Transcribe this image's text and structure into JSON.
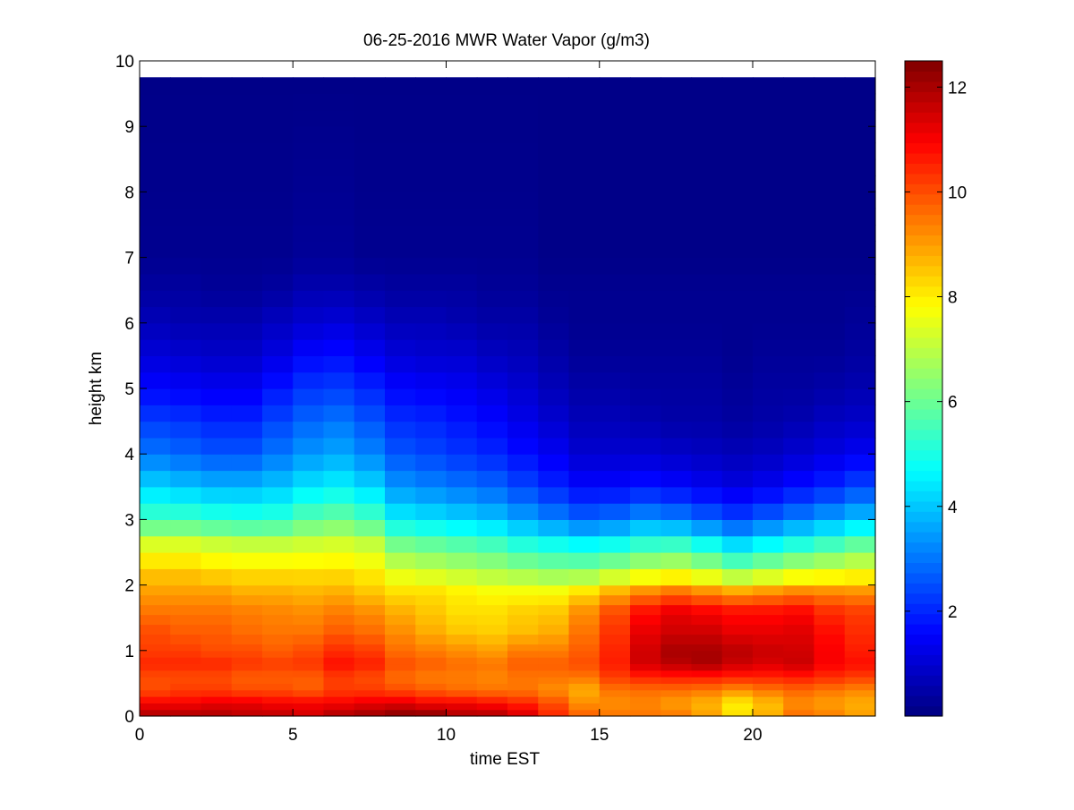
{
  "chart_data": {
    "type": "heatmap",
    "title": "06-25-2016 MWR Water Vapor (g/m3)",
    "xlabel": "time EST",
    "ylabel": "height km",
    "xlim": [
      0,
      24
    ],
    "ylim": [
      0,
      10
    ],
    "x_ticks": [
      "0",
      "5",
      "10",
      "15",
      "20"
    ],
    "y_ticks": [
      "0",
      "1",
      "2",
      "3",
      "4",
      "5",
      "6",
      "7",
      "8",
      "9",
      "10"
    ],
    "colorbar": {
      "colormap": "jet",
      "range": [
        0,
        12.5
      ],
      "ticks": [
        "2",
        "4",
        "6",
        "8",
        "10",
        "12"
      ]
    },
    "grid": false,
    "x_hours": [
      0,
      1,
      2,
      3,
      4,
      5,
      6,
      7,
      8,
      9,
      10,
      11,
      12,
      13,
      14,
      15,
      16,
      17,
      18,
      19,
      20,
      21,
      22,
      23
    ],
    "heights_km": [
      0,
      0.1,
      0.2,
      0.3,
      0.4,
      0.5,
      0.6,
      0.7,
      0.8,
      0.9,
      1.0,
      1.1,
      1.25,
      1.4,
      1.55,
      1.7,
      1.85,
      2.0,
      2.25,
      2.5,
      2.75,
      3.0,
      3.25,
      3.5,
      3.75,
      4.0,
      4.25,
      4.5,
      4.75,
      5.0,
      5.25,
      5.5,
      5.75,
      6.0,
      6.25,
      6.5,
      6.75,
      7.0,
      7.25,
      7.5,
      7.75,
      8.0,
      8.25,
      8.5,
      8.75,
      9.0,
      9.25,
      9.5,
      9.75
    ],
    "anchor_heights_km": [
      0,
      0.2,
      0.4,
      0.6,
      0.8,
      1.0,
      1.3,
      1.6,
      1.9,
      2.2,
      2.6,
      3.0,
      3.5,
      4.0,
      4.5,
      5.0,
      5.5,
      6.0,
      6.5,
      7.0,
      9.75
    ],
    "anchor_profiles_g_m3": [
      [
        12.0,
        11.0,
        10.0,
        10.0,
        10.5,
        10.2,
        10.0,
        9.5,
        9.0,
        8.5,
        7.5,
        5.5,
        4.2,
        3.0,
        2.3,
        1.6,
        1.1,
        0.7,
        0.4,
        0.2,
        0.1
      ],
      [
        12.0,
        11.0,
        10.2,
        10.0,
        10.5,
        10.2,
        9.8,
        9.5,
        9.0,
        8.5,
        7.5,
        5.5,
        4.0,
        2.8,
        2.2,
        1.5,
        1.0,
        0.6,
        0.4,
        0.2,
        0.1
      ],
      [
        12.0,
        11.2,
        10.2,
        10.0,
        10.5,
        10.0,
        9.8,
        9.5,
        9.0,
        8.3,
        7.3,
        5.3,
        3.8,
        2.6,
        2.0,
        1.4,
        0.9,
        0.6,
        0.3,
        0.2,
        0.1
      ],
      [
        11.8,
        11.2,
        10.0,
        9.8,
        10.3,
        10.0,
        9.6,
        9.4,
        8.8,
        8.2,
        7.2,
        5.2,
        3.8,
        2.6,
        2.0,
        1.4,
        0.9,
        0.6,
        0.3,
        0.2,
        0.1
      ],
      [
        11.8,
        11.0,
        10.0,
        9.8,
        10.2,
        9.8,
        9.5,
        9.3,
        8.8,
        8.2,
        7.2,
        5.3,
        4.0,
        3.0,
        2.4,
        1.8,
        1.2,
        0.8,
        0.4,
        0.2,
        0.1
      ],
      [
        11.5,
        11.0,
        9.8,
        9.8,
        10.3,
        10.0,
        9.5,
        9.2,
        8.7,
        8.2,
        7.3,
        5.8,
        4.4,
        3.4,
        2.8,
        2.2,
        1.6,
        1.0,
        0.6,
        0.3,
        0.1
      ],
      [
        12.0,
        11.0,
        10.2,
        10.2,
        10.8,
        10.4,
        9.8,
        9.4,
        8.8,
        8.2,
        7.4,
        6.0,
        4.6,
        3.6,
        3.0,
        2.3,
        1.7,
        1.1,
        0.6,
        0.3,
        0.1
      ],
      [
        12.2,
        11.2,
        10.2,
        10.0,
        10.6,
        10.2,
        9.6,
        9.2,
        8.5,
        8.0,
        7.2,
        5.6,
        4.2,
        3.2,
        2.6,
        2.0,
        1.4,
        0.9,
        0.5,
        0.2,
        0.1
      ],
      [
        12.5,
        11.3,
        10.0,
        9.6,
        10.0,
        9.6,
        9.2,
        8.8,
        8.2,
        7.4,
        6.2,
        4.6,
        3.4,
        2.6,
        2.1,
        1.6,
        1.1,
        0.7,
        0.4,
        0.2,
        0.1
      ],
      [
        12.5,
        11.0,
        9.8,
        9.4,
        9.8,
        9.4,
        8.8,
        8.5,
        8.2,
        7.2,
        6.0,
        4.4,
        3.2,
        2.4,
        2.0,
        1.5,
        1.0,
        0.7,
        0.4,
        0.2,
        0.1
      ],
      [
        12.0,
        11.0,
        9.6,
        9.4,
        9.6,
        9.2,
        8.5,
        8.2,
        8.0,
        7.0,
        5.8,
        4.2,
        3.0,
        2.2,
        1.8,
        1.4,
        1.0,
        0.6,
        0.4,
        0.2,
        0.1
      ],
      [
        12.0,
        10.8,
        9.5,
        9.3,
        9.5,
        9.0,
        8.4,
        8.2,
        7.8,
        6.8,
        5.6,
        4.0,
        2.8,
        2.0,
        1.6,
        1.2,
        0.8,
        0.5,
        0.3,
        0.2,
        0.1
      ],
      [
        11.5,
        10.5,
        9.5,
        9.5,
        9.8,
        9.4,
        8.6,
        8.4,
        7.8,
        6.6,
        5.2,
        3.6,
        2.4,
        1.7,
        1.3,
        1.0,
        0.7,
        0.5,
        0.3,
        0.2,
        0.1
      ],
      [
        10.5,
        10.0,
        9.2,
        9.5,
        9.8,
        9.4,
        8.8,
        8.5,
        7.8,
        6.4,
        5.0,
        3.2,
        2.0,
        1.4,
        1.0,
        0.7,
        0.5,
        0.3,
        0.2,
        0.1,
        0.1
      ],
      [
        9.8,
        9.2,
        8.8,
        9.5,
        10.0,
        9.8,
        9.5,
        9.2,
        8.2,
        6.4,
        4.8,
        2.8,
        1.6,
        1.0,
        0.7,
        0.5,
        0.3,
        0.2,
        0.2,
        0.1,
        0.1
      ],
      [
        9.5,
        9.2,
        9.5,
        10.2,
        10.6,
        10.5,
        10.3,
        10.0,
        8.8,
        6.8,
        5.0,
        3.0,
        1.6,
        1.0,
        0.7,
        0.5,
        0.3,
        0.2,
        0.2,
        0.1,
        0.1
      ],
      [
        9.5,
        9.3,
        9.6,
        10.5,
        11.5,
        11.5,
        11.2,
        10.8,
        9.3,
        7.2,
        5.4,
        3.4,
        1.8,
        1.0,
        0.6,
        0.4,
        0.3,
        0.2,
        0.2,
        0.1,
        0.1
      ],
      [
        9.5,
        9.0,
        9.6,
        10.6,
        11.8,
        12.0,
        11.5,
        11.2,
        9.6,
        7.4,
        5.5,
        3.2,
        1.6,
        0.9,
        0.5,
        0.4,
        0.3,
        0.2,
        0.2,
        0.1,
        0.1
      ],
      [
        9.0,
        8.7,
        9.5,
        10.6,
        12.0,
        12.0,
        11.5,
        11.0,
        9.3,
        7.0,
        5.0,
        2.8,
        1.4,
        0.8,
        0.5,
        0.4,
        0.3,
        0.2,
        0.2,
        0.1,
        0.1
      ],
      [
        8.2,
        8.0,
        9.2,
        10.5,
        11.6,
        11.8,
        11.2,
        10.8,
        9.0,
        6.4,
        4.4,
        2.4,
        1.2,
        0.7,
        0.4,
        0.3,
        0.2,
        0.2,
        0.2,
        0.1,
        0.1
      ],
      [
        8.8,
        8.6,
        9.5,
        10.5,
        11.4,
        11.6,
        11.2,
        10.8,
        9.2,
        6.8,
        4.8,
        2.8,
        1.4,
        0.8,
        0.5,
        0.4,
        0.3,
        0.2,
        0.2,
        0.1,
        0.1
      ],
      [
        9.6,
        9.2,
        9.7,
        10.6,
        11.6,
        11.5,
        11.3,
        10.9,
        9.4,
        7.2,
        5.2,
        3.2,
        1.7,
        1.0,
        0.6,
        0.4,
        0.3,
        0.2,
        0.2,
        0.1,
        0.1
      ],
      [
        9.4,
        9.0,
        9.5,
        10.4,
        11.0,
        11.0,
        10.8,
        10.4,
        9.3,
        7.4,
        5.6,
        3.6,
        2.0,
        1.2,
        0.8,
        0.5,
        0.3,
        0.2,
        0.2,
        0.1,
        0.1
      ],
      [
        9.0,
        8.8,
        9.3,
        10.2,
        10.8,
        10.6,
        10.4,
        10.2,
        9.2,
        7.6,
        6.0,
        4.0,
        2.4,
        1.4,
        0.9,
        0.6,
        0.4,
        0.3,
        0.2,
        0.1,
        0.1
      ]
    ]
  }
}
